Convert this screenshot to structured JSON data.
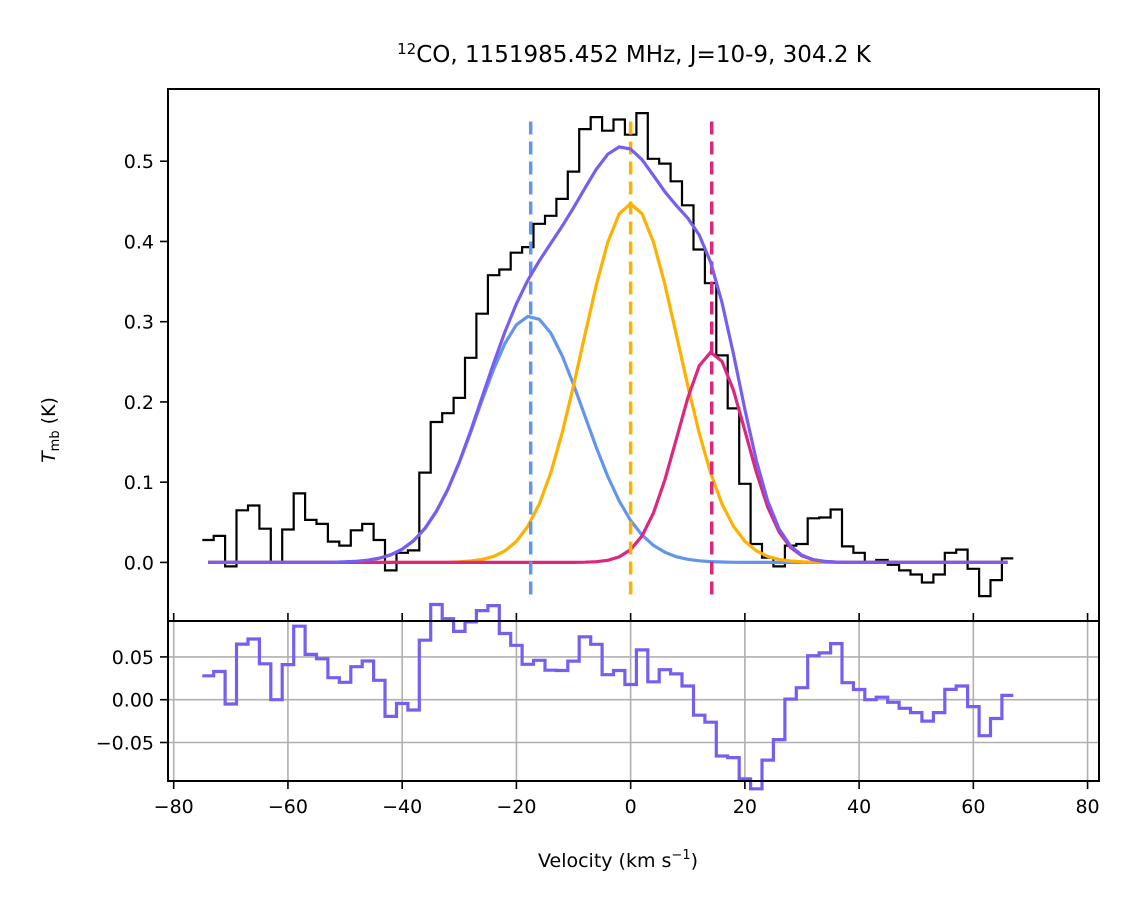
{
  "chart_data": [
    {
      "type": "line",
      "title_sup": "12",
      "title": "CO, 1151985.452 MHz, J=10-9, 304.2 K",
      "xlabel": "",
      "ylabel_main": "T",
      "ylabel_sub": "mb",
      "ylabel_unit": " (K)",
      "xlim": [
        -81,
        82
      ],
      "ylim": [
        -0.073,
        0.59
      ],
      "yticks": [
        0.0,
        0.1,
        0.2,
        0.3,
        0.4,
        0.5
      ],
      "ytick_labels": [
        "0.0",
        "0.1",
        "0.2",
        "0.3",
        "0.4",
        "0.5"
      ],
      "grid": false,
      "spectrum": {
        "name": "",
        "color": "#000000",
        "x0": -74,
        "dx": 2,
        "values": [
          0.028,
          0.033,
          -0.005,
          0.065,
          0.071,
          0.042,
          0.0,
          0.041,
          0.086,
          0.053,
          0.048,
          0.026,
          0.021,
          0.04,
          0.048,
          0.028,
          -0.01,
          0.012,
          0.015,
          0.112,
          0.175,
          0.186,
          0.205,
          0.255,
          0.31,
          0.358,
          0.365,
          0.386,
          0.393,
          0.422,
          0.432,
          0.453,
          0.487,
          0.54,
          0.555,
          0.538,
          0.552,
          0.533,
          0.56,
          0.503,
          0.497,
          0.475,
          0.445,
          0.39,
          0.348,
          0.258,
          0.192,
          0.098,
          0.023,
          0.006,
          -0.005,
          0.021,
          0.023,
          0.055,
          0.056,
          0.066,
          0.02,
          0.012,
          0.0,
          0.003,
          -0.003,
          -0.01,
          -0.015,
          -0.025,
          -0.015,
          0.012,
          0.016,
          -0.008,
          -0.042,
          -0.022,
          0.005
        ]
      },
      "components": [
        {
          "name": "",
          "color": "#6495ed",
          "amp": 0.307,
          "center": -17.5,
          "sigma": 9.3
        },
        {
          "name": "",
          "color": "#ffb000",
          "amp": 0.447,
          "center": 0.0,
          "sigma": 8.4
        },
        {
          "name": "",
          "color": "#dc267f",
          "amp": 0.262,
          "center": 14.2,
          "sigma": 6.0
        }
      ],
      "sum": {
        "name": "",
        "color": "#785ef0"
      },
      "vlines": [
        {
          "x": -17.5,
          "color": "#6495ed",
          "ymin": -0.04,
          "ymax": 0.555
        },
        {
          "x": 0.0,
          "color": "#ffb000",
          "ymin": -0.04,
          "ymax": 0.555
        },
        {
          "x": 14.2,
          "color": "#dc267f",
          "ymin": -0.04,
          "ymax": 0.555
        }
      ]
    },
    {
      "type": "line",
      "title": "",
      "xlabel_main": "Velocity (km s",
      "xlabel_sup": "−1",
      "xlabel_end": ")",
      "ylabel": "",
      "xlim": [
        -81,
        82
      ],
      "ylim": [
        -0.095,
        0.092
      ],
      "xticks": [
        -80,
        -60,
        -40,
        -20,
        0,
        20,
        40,
        60,
        80
      ],
      "xtick_labels": [
        "−80",
        "−60",
        "−40",
        "−20",
        "0",
        "20",
        "40",
        "60",
        "80"
      ],
      "yticks": [
        -0.05,
        0.0,
        0.05
      ],
      "ytick_labels": [
        "−0.05",
        "0.00",
        "0.05"
      ],
      "grid": true,
      "residual": {
        "name": "",
        "color": "#785ef0"
      }
    }
  ]
}
